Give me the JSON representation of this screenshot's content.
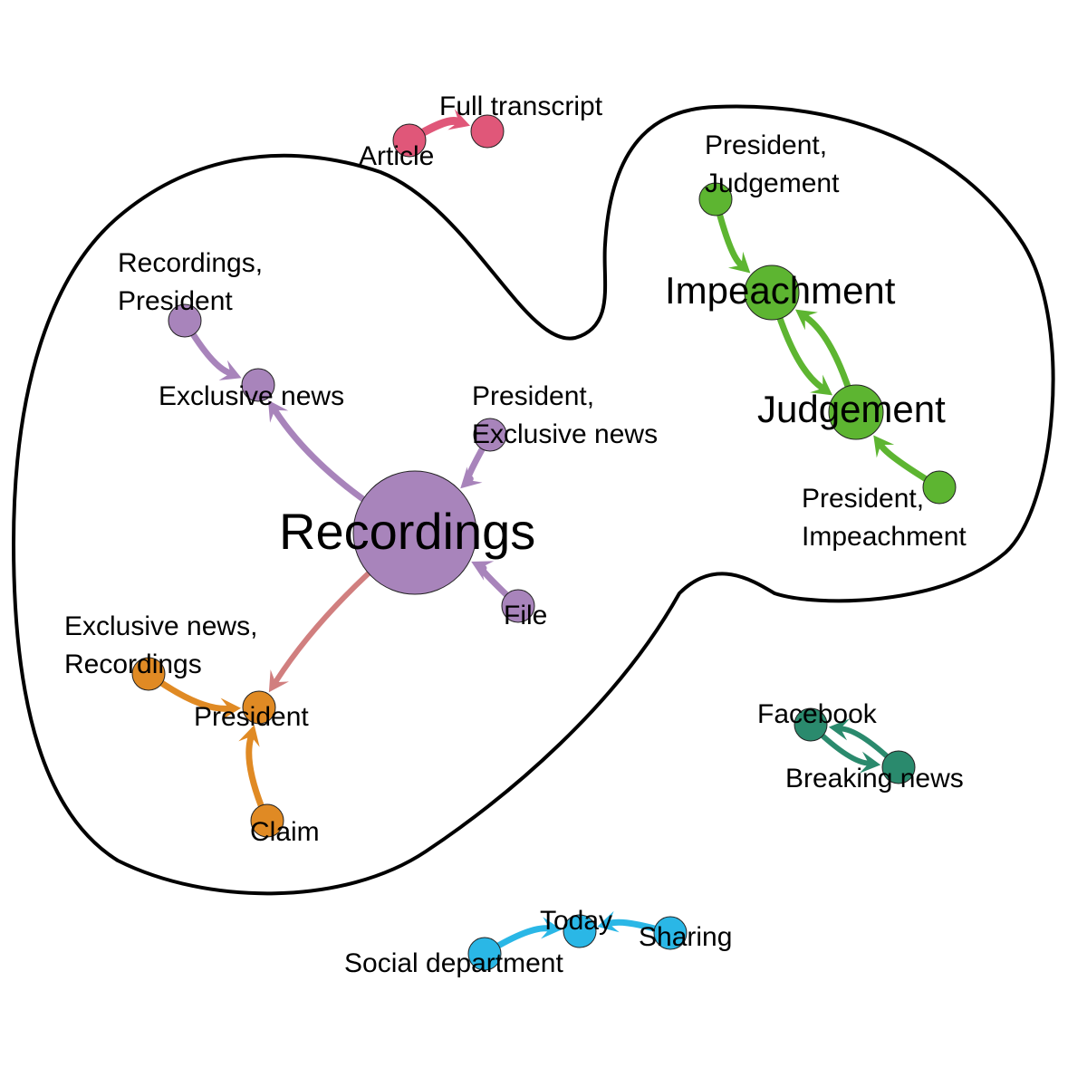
{
  "nodes": {
    "article": {
      "label": "Article",
      "color": "#e05779"
    },
    "full_transcript": {
      "label": "Full transcript",
      "color": "#e05779"
    },
    "pres_judgement": {
      "label": [
        "President,",
        "Judgement"
      ],
      "color": "#5db531"
    },
    "impeachment": {
      "label": "Impeachment",
      "color": "#5db531"
    },
    "judgement": {
      "label": "Judgement",
      "color": "#5db531"
    },
    "pres_impeachment": {
      "label": [
        "President,",
        "Impeachment"
      ],
      "color": "#5db531"
    },
    "rec_president": {
      "label": [
        "Recordings,",
        "President"
      ],
      "color": "#a884bb"
    },
    "exclusive_news": {
      "label": "Exclusive news",
      "color": "#a884bb"
    },
    "pres_exclusive": {
      "label": [
        "President,",
        "Exclusive news"
      ],
      "color": "#a884bb"
    },
    "recordings": {
      "label": "Recordings",
      "color": "#a884bb"
    },
    "file": {
      "label": "File",
      "color": "#a884bb"
    },
    "excl_recordings": {
      "label": [
        "Exclusive news,",
        "Recordings"
      ],
      "color": "#e08a24"
    },
    "president": {
      "label": "President",
      "color": "#e08a24"
    },
    "claim": {
      "label": "Claim",
      "color": "#e08a24"
    },
    "facebook": {
      "label": "Facebook",
      "color": "#2a8a6d"
    },
    "breaking_news": {
      "label": "Breaking news",
      "color": "#2a8a6d"
    },
    "social_department": {
      "label": "Social department",
      "color": "#2ab7e6"
    },
    "today": {
      "label": "Today",
      "color": "#2ab7e6"
    },
    "sharing": {
      "label": "Sharing",
      "color": "#2ab7e6"
    }
  },
  "edges": [
    {
      "from": "article",
      "to": "full_transcript",
      "color": "#e05779"
    },
    {
      "from": "pres_judgement",
      "to": "impeachment",
      "color": "#5db531"
    },
    {
      "from": "impeachment",
      "to": "judgement",
      "color": "#5db531"
    },
    {
      "from": "judgement",
      "to": "impeachment",
      "color": "#5db531"
    },
    {
      "from": "pres_impeachment",
      "to": "judgement",
      "color": "#5db531"
    },
    {
      "from": "rec_president",
      "to": "exclusive_news",
      "color": "#a884bb"
    },
    {
      "from": "recordings",
      "to": "exclusive_news",
      "color": "#a884bb"
    },
    {
      "from": "pres_exclusive",
      "to": "recordings",
      "color": "#a884bb"
    },
    {
      "from": "file",
      "to": "recordings",
      "color": "#a884bb"
    },
    {
      "from": "recordings",
      "to": "president",
      "color": "#d17f7f"
    },
    {
      "from": "excl_recordings",
      "to": "president",
      "color": "#e08a24"
    },
    {
      "from": "claim",
      "to": "president",
      "color": "#e08a24"
    },
    {
      "from": "facebook",
      "to": "breaking_news",
      "color": "#2a8a6d"
    },
    {
      "from": "breaking_news",
      "to": "facebook",
      "color": "#2a8a6d"
    },
    {
      "from": "social_department",
      "to": "today",
      "color": "#2ab7e6"
    },
    {
      "from": "sharing",
      "to": "today",
      "color": "#2ab7e6"
    }
  ]
}
